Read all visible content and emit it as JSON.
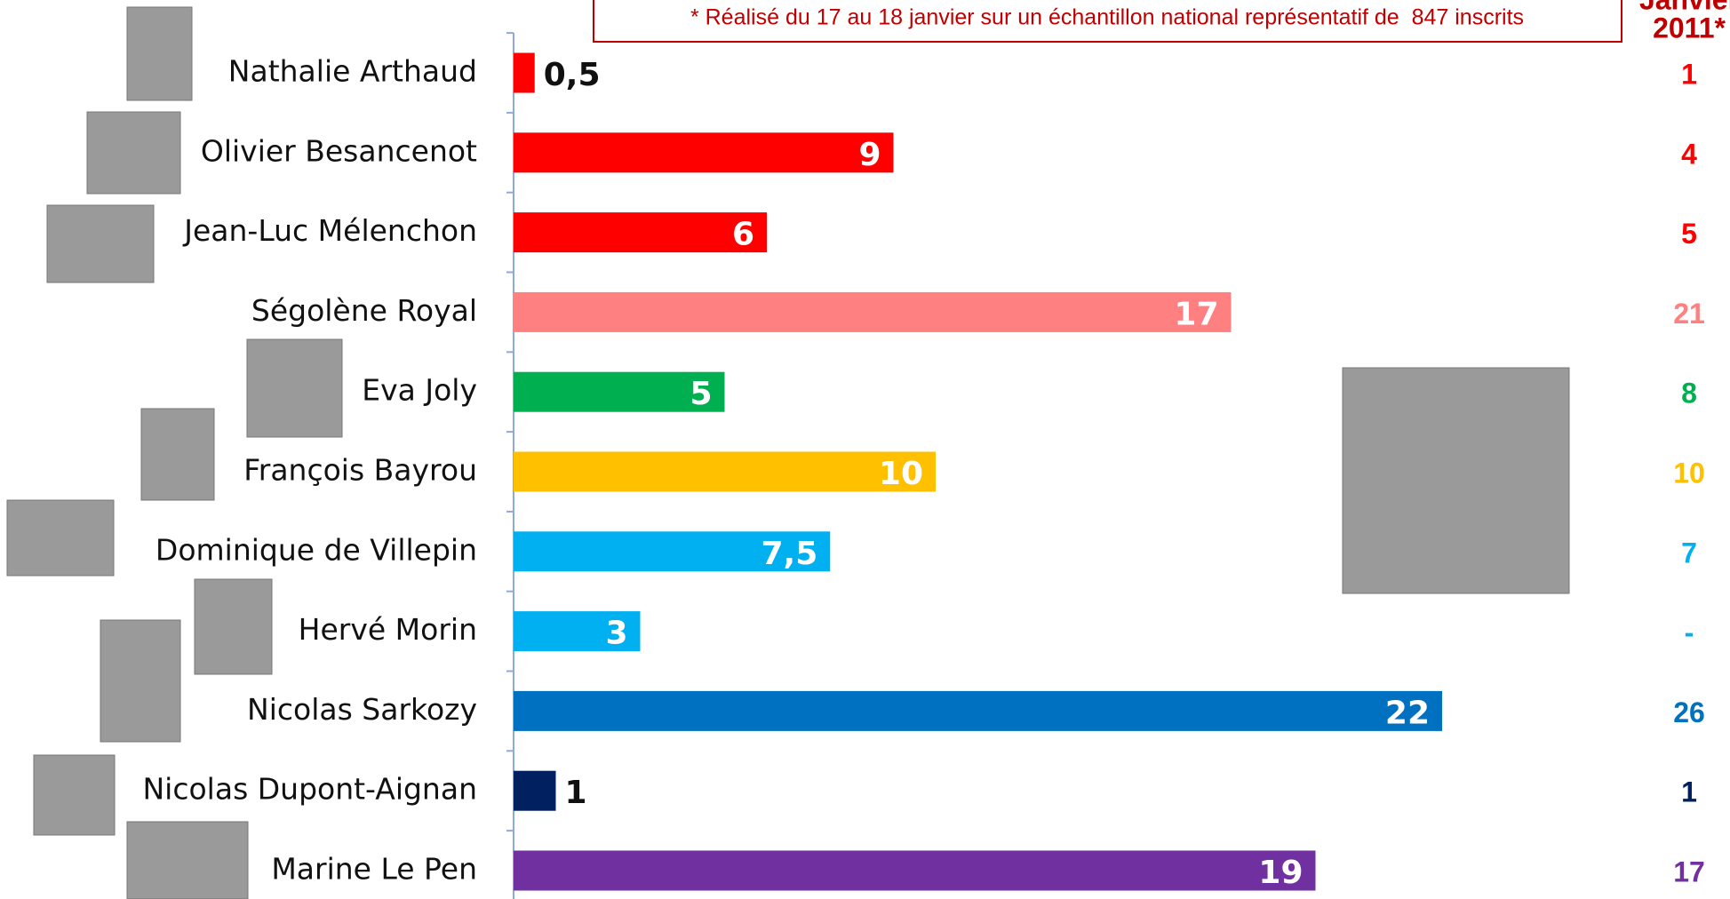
{
  "chart_data": {
    "type": "bar",
    "orientation": "horizontal",
    "note": "* Réalisé du 17 au 18 janvier sur un échantillon national représentatif de  847 inscrits",
    "categories": [
      "Nathalie Arthaud",
      "Olivier Besancenot",
      "Jean-Luc Mélenchon",
      "Ségolène Royal",
      "Eva Joly",
      "François Bayrou",
      "Dominique de Villepin",
      "Hervé Morin",
      "Nicolas Sarkozy",
      "Nicolas Dupont-Aignan",
      "Marine Le Pen"
    ],
    "values": [
      0.5,
      9,
      6,
      17,
      5,
      10,
      7.5,
      3,
      22,
      1,
      19
    ],
    "value_labels": [
      "0,5",
      "9",
      "6",
      "17",
      "5",
      "10",
      "7,5",
      "3",
      "22",
      "1",
      "19"
    ],
    "colors": [
      "#ff0000",
      "#ff0000",
      "#ff0000",
      "#ff8080",
      "#00b050",
      "#ffc000",
      "#00b0f0",
      "#00b0f0",
      "#0070c0",
      "#002060",
      "#7030a0"
    ],
    "xlim": [
      0,
      22
    ],
    "previous": {
      "title": [
        "Janvier",
        "2011*"
      ],
      "values": [
        1,
        4,
        5,
        21,
        8,
        10,
        7,
        null,
        26,
        1,
        17
      ],
      "value_labels": [
        "1",
        "4",
        "5",
        "21",
        "8",
        "10",
        "7",
        "-",
        "26",
        "1",
        "17"
      ]
    }
  }
}
